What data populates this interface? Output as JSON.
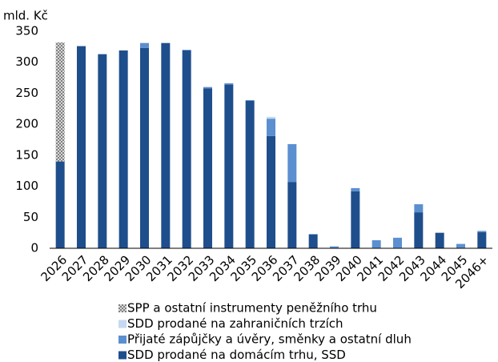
{
  "chart_data": {
    "type": "bar",
    "stacked": true,
    "y_label": "mld. Kč",
    "categories": [
      "2026",
      "2027",
      "2028",
      "2029",
      "2030",
      "2031",
      "2032",
      "2033",
      "2034",
      "2035",
      "2036",
      "2037",
      "2038",
      "2039",
      "2040",
      "2041",
      "2042",
      "2043",
      "2044",
      "2045",
      "2046+"
    ],
    "series": [
      {
        "name": "SDD prodané na domácím trhu, SSD",
        "color": "#1f4e8c",
        "values": [
          140,
          326,
          313,
          319,
          323,
          331,
          319,
          258,
          264,
          238,
          181,
          107,
          22,
          0,
          92,
          0,
          0,
          58,
          25,
          0,
          26
        ]
      },
      {
        "name": "Přijaté zápůjčky a úvěry, směnky a ostatní dluh",
        "color": "#5b8fd0",
        "values": [
          0,
          0,
          0,
          0,
          8,
          0,
          1,
          2,
          2,
          1,
          28,
          61,
          1,
          3,
          5,
          13,
          17,
          13,
          0,
          7,
          2
        ]
      },
      {
        "name": "SDD prodané na zahraničních trzích",
        "color": "#c6d9f1",
        "values": [
          0,
          0,
          0,
          0,
          0,
          0,
          0,
          0,
          0,
          0,
          3,
          0,
          0,
          0,
          0,
          0,
          0,
          0,
          0,
          0,
          0
        ]
      },
      {
        "name": "SPP a ostatní instrumenty peněžního trhu",
        "color": "#a6a6a6",
        "pattern": "checker",
        "values": [
          192,
          0,
          0,
          0,
          0,
          0,
          0,
          0,
          0,
          0,
          0,
          0,
          0,
          0,
          0,
          0,
          0,
          0,
          0,
          0,
          0
        ]
      }
    ],
    "ylim": [
      0,
      350
    ],
    "yticks": [
      0,
      50,
      100,
      150,
      200,
      250,
      300,
      350
    ],
    "grid": false,
    "legend": "bottom"
  }
}
